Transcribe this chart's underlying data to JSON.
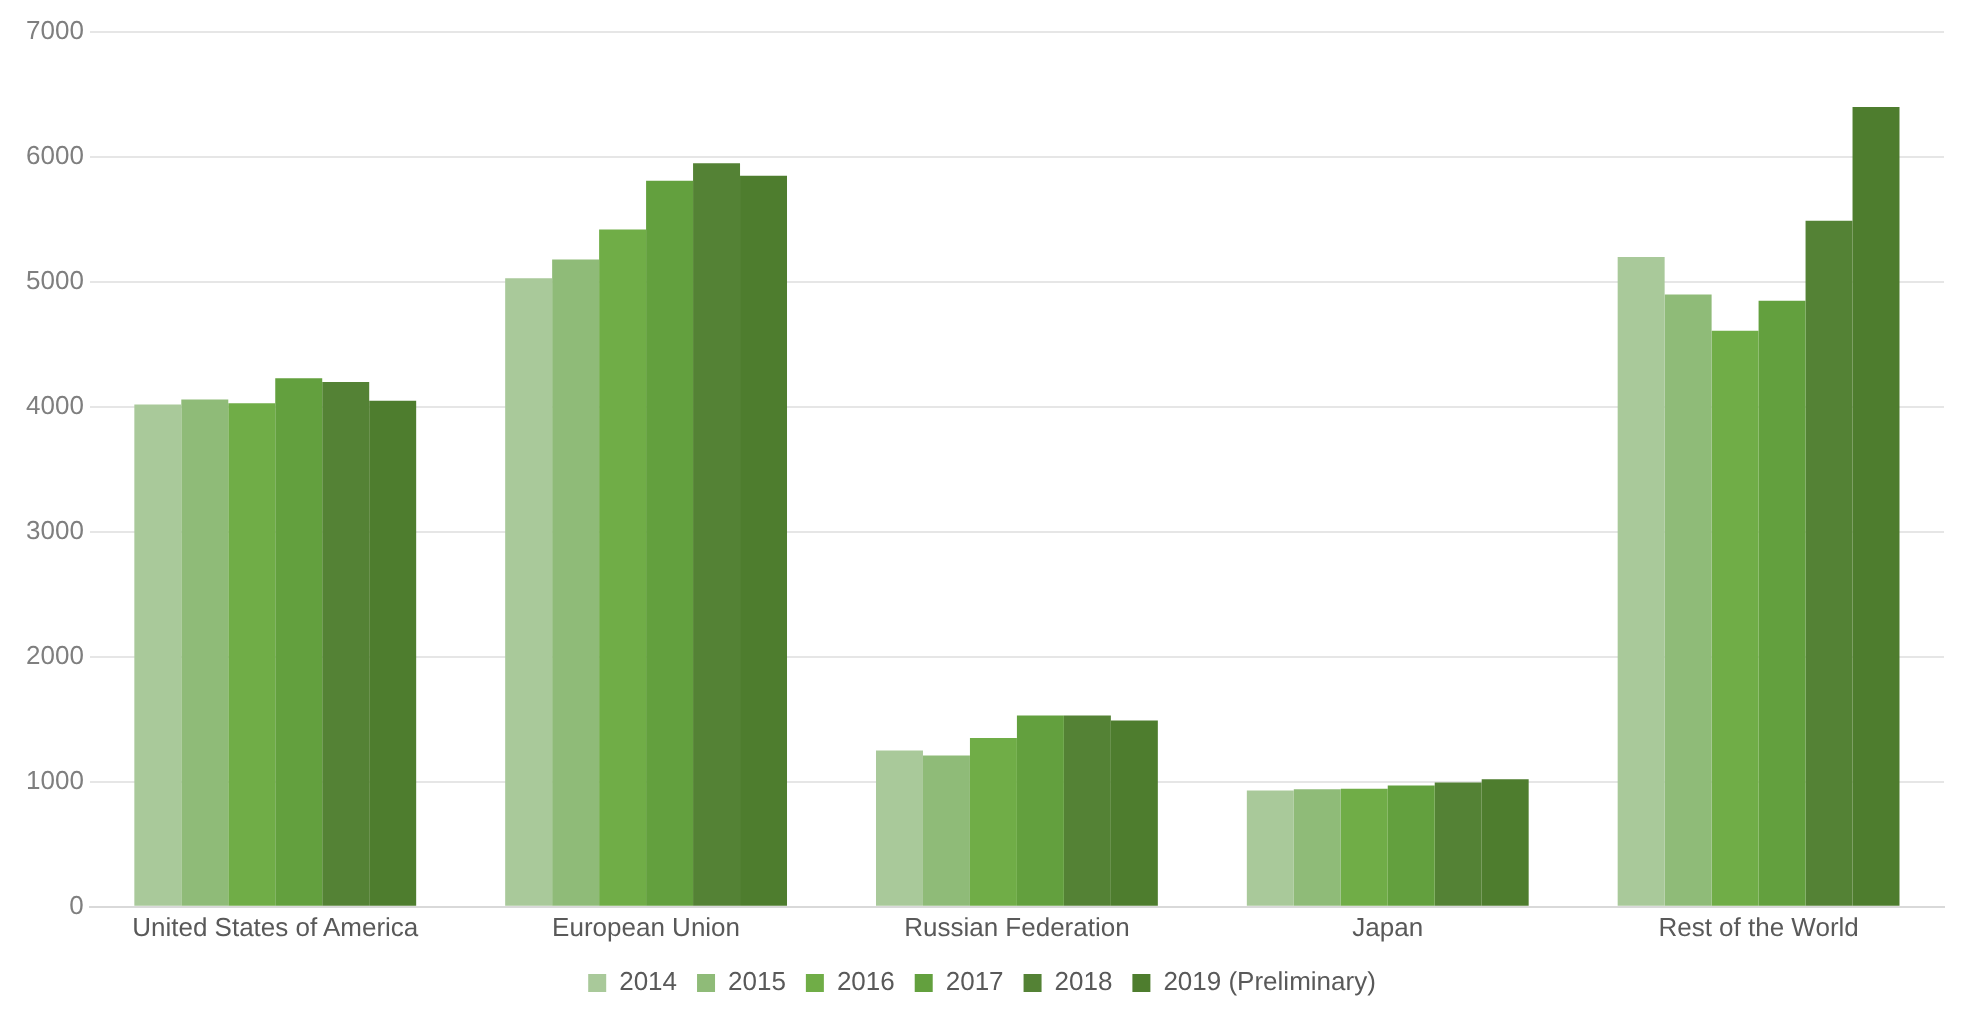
{
  "chart_data": {
    "type": "bar",
    "categories": [
      "United States of America",
      "European Union",
      "Russian Federation",
      "Japan",
      "Rest of the World"
    ],
    "series": [
      {
        "name": "2014",
        "color": "#a9c99a",
        "values": [
          4020,
          5030,
          1250,
          930,
          5200
        ]
      },
      {
        "name": "2015",
        "color": "#8fbb78",
        "values": [
          4060,
          5180,
          1210,
          940,
          4900
        ]
      },
      {
        "name": "2016",
        "color": "#70ad47",
        "values": [
          4030,
          5420,
          1350,
          945,
          4610
        ]
      },
      {
        "name": "2017",
        "color": "#63a03e",
        "values": [
          4230,
          5810,
          1530,
          970,
          4850
        ]
      },
      {
        "name": "2018",
        "color": "#548235",
        "values": [
          4200,
          5950,
          1530,
          995,
          5490
        ]
      },
      {
        "name": "2019 (Preliminary)",
        "color": "#4e7d2e",
        "values": [
          4050,
          5850,
          1490,
          1020,
          6400
        ]
      }
    ],
    "ylim": [
      0,
      7000
    ],
    "yticks": [
      0,
      1000,
      2000,
      3000,
      4000,
      5000,
      6000,
      7000
    ],
    "grid": "y",
    "legend": "bottom"
  }
}
